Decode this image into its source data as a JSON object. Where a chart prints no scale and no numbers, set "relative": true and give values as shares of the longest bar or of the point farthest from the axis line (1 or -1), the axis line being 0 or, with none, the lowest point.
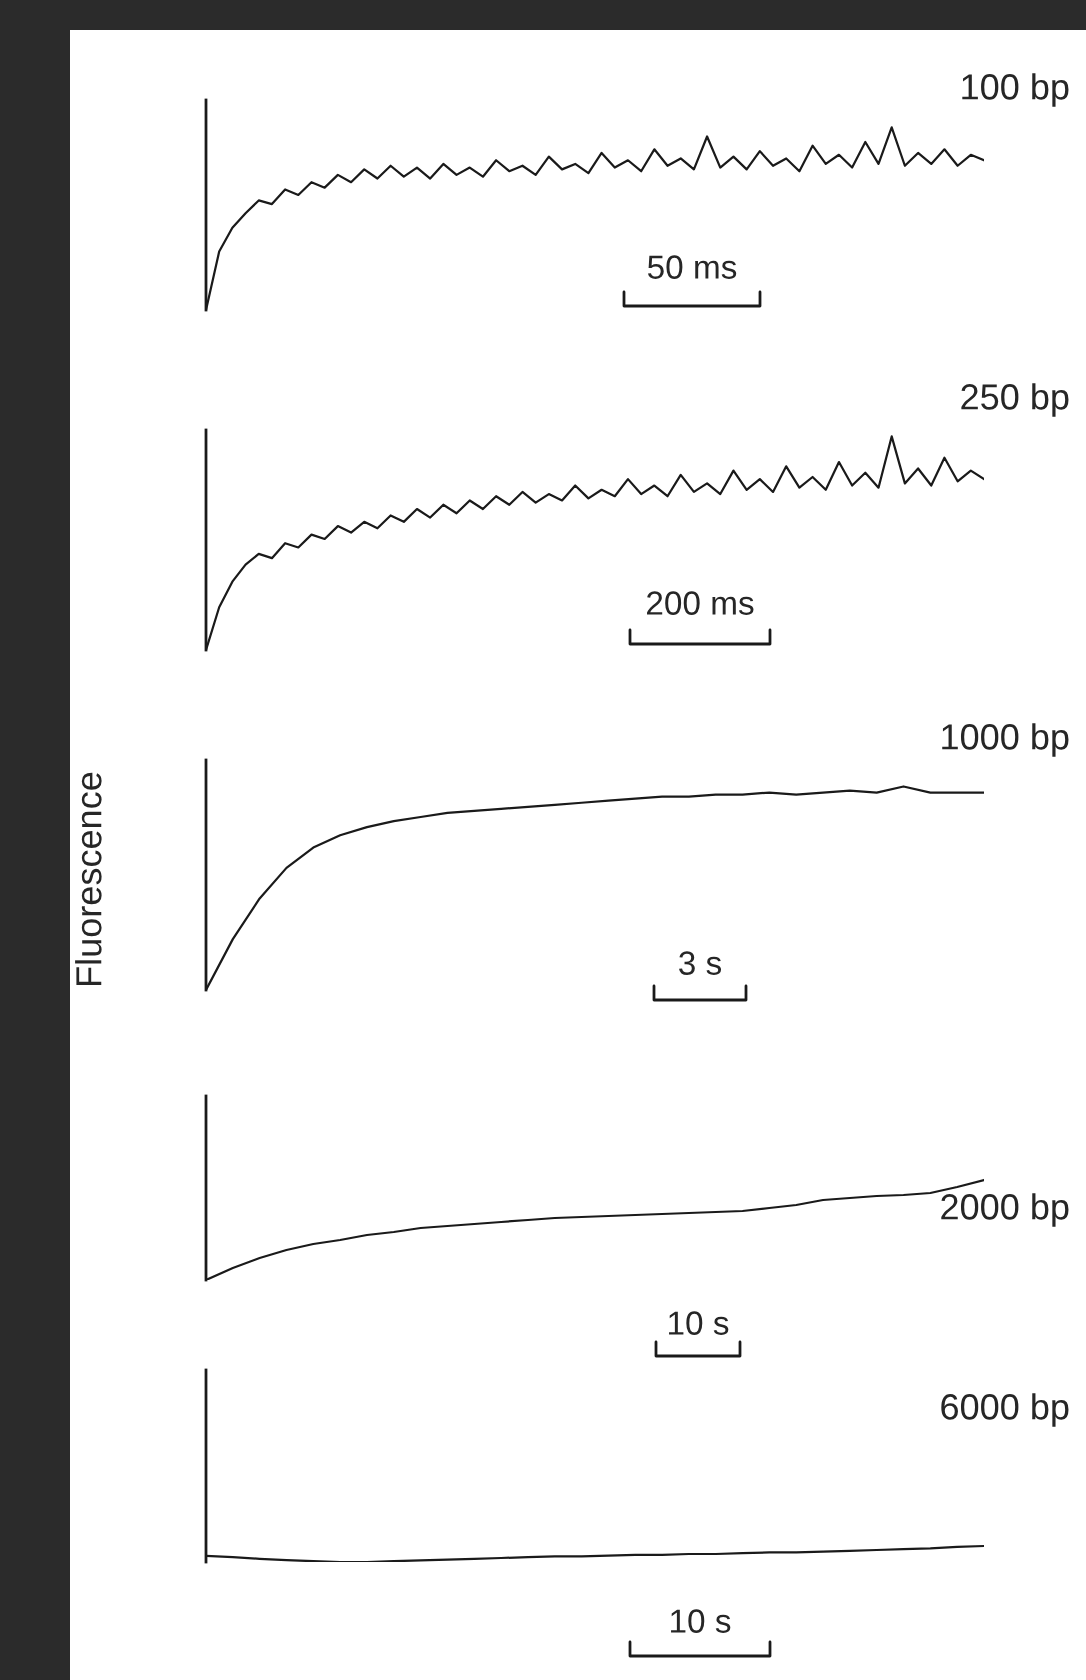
{
  "chart_data": [
    {
      "type": "line",
      "relative": true,
      "title": "100 bp",
      "annotations": [
        "50 ms"
      ],
      "color": "#1a1a1a",
      "categories": [
        null,
        null,
        null,
        null,
        null,
        null,
        null,
        null,
        null,
        null,
        null,
        null,
        null,
        null,
        null,
        null,
        null,
        null,
        null,
        null,
        null,
        null,
        null,
        null,
        null,
        null,
        null,
        null,
        null,
        null,
        null,
        null,
        null,
        null,
        null,
        null,
        null,
        null,
        null,
        null,
        null,
        null,
        null,
        null,
        null,
        null,
        null,
        null,
        null,
        null,
        null,
        null,
        null,
        null,
        null,
        null,
        null,
        null,
        null,
        null
      ],
      "values": [
        0,
        0.32,
        0.45,
        0.53,
        0.6,
        0.58,
        0.66,
        0.63,
        0.7,
        0.67,
        0.74,
        0.7,
        0.77,
        0.72,
        0.79,
        0.73,
        0.78,
        0.72,
        0.8,
        0.74,
        0.78,
        0.73,
        0.82,
        0.76,
        0.79,
        0.74,
        0.84,
        0.77,
        0.8,
        0.75,
        0.86,
        0.78,
        0.82,
        0.76,
        0.88,
        0.79,
        0.83,
        0.77,
        0.95,
        0.78,
        0.84,
        0.77,
        0.87,
        0.79,
        0.83,
        0.76,
        0.9,
        0.8,
        0.85,
        0.78,
        0.92,
        0.8,
        1.0,
        0.79,
        0.86,
        0.8,
        0.88,
        0.79,
        0.85,
        0.82
      ]
    },
    {
      "type": "line",
      "relative": true,
      "title": "250 bp",
      "annotations": [
        "200 ms"
      ],
      "color": "#1a1a1a",
      "categories": [
        null,
        null,
        null,
        null,
        null,
        null,
        null,
        null,
        null,
        null,
        null,
        null,
        null,
        null,
        null,
        null,
        null,
        null,
        null,
        null,
        null,
        null,
        null,
        null,
        null,
        null,
        null,
        null,
        null,
        null,
        null,
        null,
        null,
        null,
        null,
        null,
        null,
        null,
        null,
        null,
        null,
        null,
        null,
        null,
        null,
        null,
        null,
        null,
        null,
        null,
        null,
        null,
        null,
        null,
        null,
        null,
        null,
        null,
        null,
        null
      ],
      "values": [
        0,
        0.2,
        0.32,
        0.4,
        0.45,
        0.43,
        0.5,
        0.48,
        0.54,
        0.52,
        0.58,
        0.55,
        0.6,
        0.57,
        0.63,
        0.6,
        0.66,
        0.62,
        0.68,
        0.64,
        0.7,
        0.66,
        0.72,
        0.68,
        0.74,
        0.69,
        0.73,
        0.7,
        0.77,
        0.71,
        0.75,
        0.72,
        0.8,
        0.73,
        0.77,
        0.72,
        0.82,
        0.74,
        0.78,
        0.73,
        0.84,
        0.75,
        0.8,
        0.74,
        0.86,
        0.76,
        0.81,
        0.75,
        0.88,
        0.77,
        0.83,
        0.76,
        1.0,
        0.78,
        0.85,
        0.77,
        0.9,
        0.79,
        0.84,
        0.8
      ]
    },
    {
      "type": "line",
      "relative": true,
      "title": "1000 bp",
      "ylabel": "Fluorescence",
      "annotations": [
        "3 s"
      ],
      "color": "#1a1a1a",
      "categories": [
        null,
        null,
        null,
        null,
        null,
        null,
        null,
        null,
        null,
        null,
        null,
        null,
        null,
        null,
        null,
        null,
        null,
        null,
        null,
        null,
        null,
        null,
        null,
        null,
        null,
        null,
        null,
        null,
        null,
        null
      ],
      "values": [
        0,
        0.25,
        0.45,
        0.6,
        0.7,
        0.76,
        0.8,
        0.83,
        0.85,
        0.87,
        0.88,
        0.89,
        0.9,
        0.91,
        0.92,
        0.93,
        0.94,
        0.95,
        0.95,
        0.96,
        0.96,
        0.97,
        0.96,
        0.97,
        0.98,
        0.97,
        1.0,
        0.97,
        0.97,
        0.97
      ]
    },
    {
      "type": "line",
      "relative": true,
      "title": "2000 bp",
      "annotations": [
        "10 s"
      ],
      "color": "#1a1a1a",
      "categories": [
        null,
        null,
        null,
        null,
        null,
        null,
        null,
        null,
        null,
        null,
        null,
        null,
        null,
        null,
        null,
        null,
        null,
        null,
        null,
        null,
        null,
        null,
        null,
        null,
        null,
        null,
        null,
        null,
        null,
        null
      ],
      "values": [
        0,
        0.12,
        0.22,
        0.3,
        0.36,
        0.4,
        0.45,
        0.48,
        0.52,
        0.54,
        0.56,
        0.58,
        0.6,
        0.62,
        0.63,
        0.64,
        0.65,
        0.66,
        0.67,
        0.68,
        0.69,
        0.72,
        0.75,
        0.8,
        0.82,
        0.84,
        0.85,
        0.87,
        0.93,
        1.0
      ]
    },
    {
      "type": "line",
      "relative": true,
      "title": "6000 bp",
      "annotations": [
        "10 s"
      ],
      "color": "#1a1a1a",
      "categories": [
        null,
        null,
        null,
        null,
        null,
        null,
        null,
        null,
        null,
        null,
        null,
        null,
        null,
        null,
        null,
        null,
        null,
        null,
        null,
        null,
        null,
        null,
        null,
        null,
        null,
        null,
        null,
        null,
        null,
        null
      ],
      "values": [
        0.38,
        0.3,
        0.2,
        0.12,
        0.05,
        0,
        0,
        0.05,
        0.1,
        0.15,
        0.2,
        0.25,
        0.3,
        0.35,
        0.35,
        0.4,
        0.45,
        0.45,
        0.5,
        0.5,
        0.55,
        0.6,
        0.6,
        0.65,
        0.7,
        0.75,
        0.8,
        0.85,
        0.95,
        1.0
      ]
    }
  ]
}
